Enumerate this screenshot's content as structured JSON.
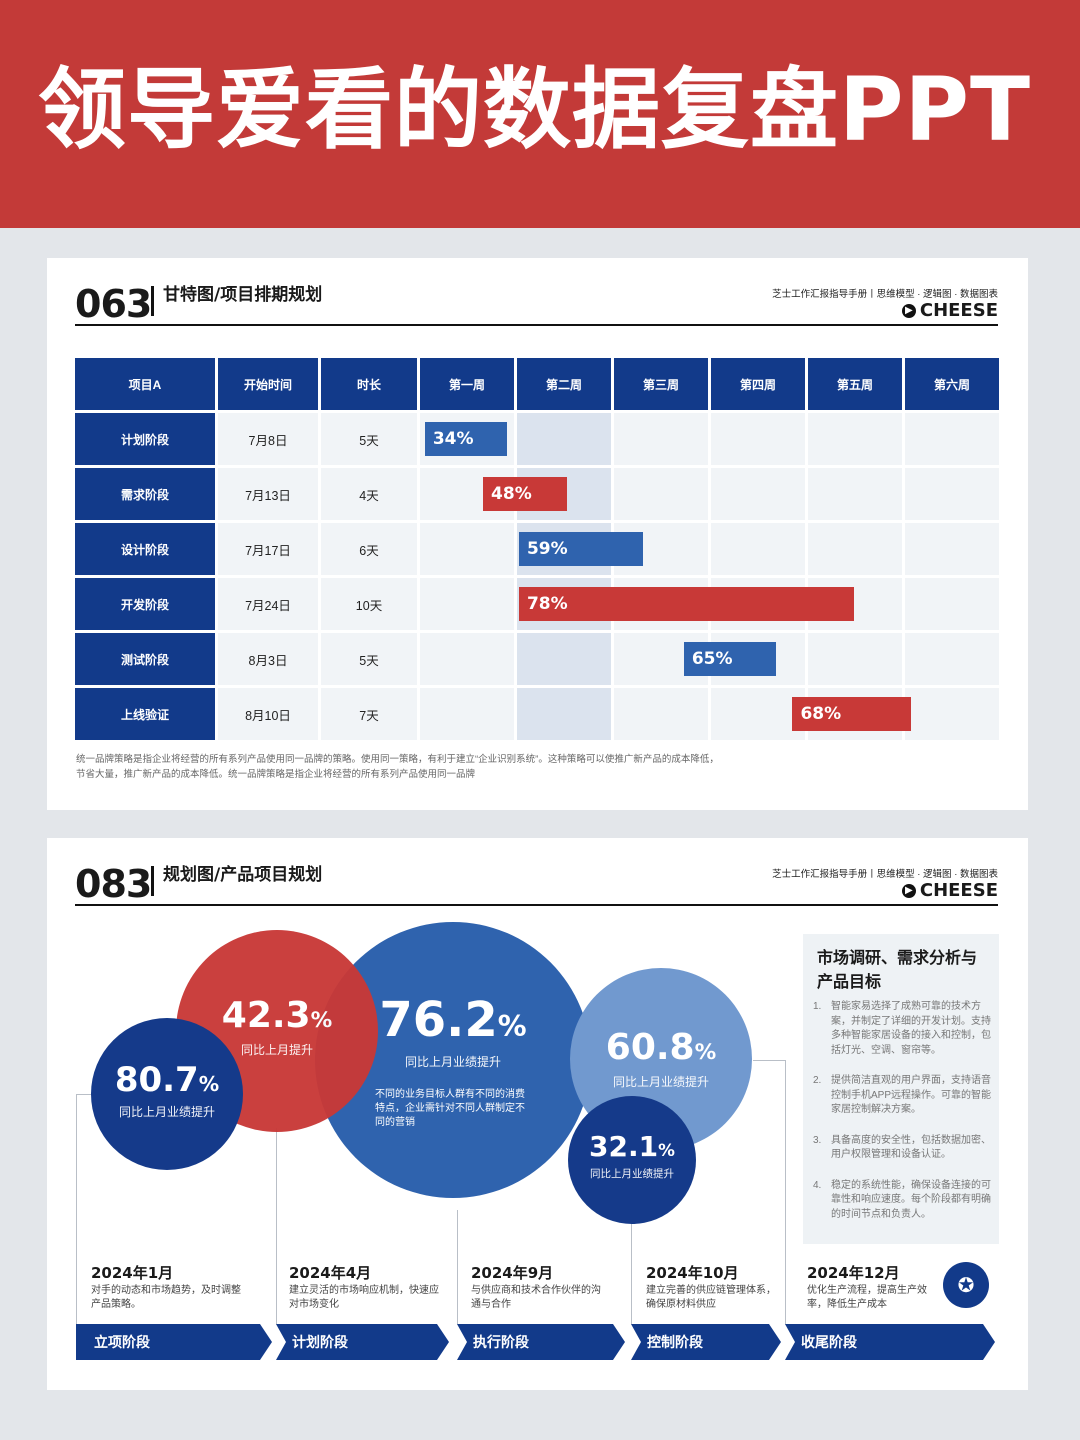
{
  "banner": {
    "title": "领导爱看的数据复盘PPT"
  },
  "header_sub": "芝士工作汇报指导手册丨思维模型 · 逻辑图 · 数据图表",
  "header_brand": "CHEESE",
  "section1": {
    "num": "063",
    "title": "甘特图/项目排期规划",
    "columns": [
      "项目A",
      "开始时间",
      "时长",
      "第一周",
      "第二周",
      "第三周",
      "第四周",
      "第五周",
      "第六周"
    ],
    "rows": [
      {
        "name": "计划阶段",
        "start": "7月8日",
        "duration": "5天",
        "pct": "34%",
        "color": "blue",
        "bar_start": 0.05,
        "bar_len": 0.85
      },
      {
        "name": "需求阶段",
        "start": "7月13日",
        "duration": "4天",
        "pct": "48%",
        "color": "red",
        "bar_start": 0.65,
        "bar_len": 0.87
      },
      {
        "name": "设计阶段",
        "start": "7月17日",
        "duration": "6天",
        "pct": "59%",
        "color": "blue",
        "bar_start": 1.02,
        "bar_len": 1.28
      },
      {
        "name": "开发阶段",
        "start": "7月24日",
        "duration": "10天",
        "pct": "78%",
        "color": "red",
        "bar_start": 1.02,
        "bar_len": 3.45
      },
      {
        "name": "测试阶段",
        "start": "8月3日",
        "duration": "5天",
        "pct": "65%",
        "color": "blue",
        "bar_start": 2.72,
        "bar_len": 0.95
      },
      {
        "name": "上线验证",
        "start": "8月10日",
        "duration": "7天",
        "pct": "68%",
        "color": "red",
        "bar_start": 3.84,
        "bar_len": 1.22
      }
    ],
    "note": "统一品牌策略是指企业将经营的所有系列产品使用同一品牌的策略。使用同一策略，有利于建立“企业识别系统”。这种策略可以使推广新产品的成本降低，节省大量，推广新产品的成本降低。统一品牌策略是指企业将经营的所有系列产品使用同一品牌"
  },
  "section2": {
    "num": "083",
    "title": "规划图/产品项目规划",
    "bubbles": [
      {
        "value": "80.7",
        "unit": "%",
        "label": "同比上月业绩提升",
        "color": "#153a8a"
      },
      {
        "value": "42.3",
        "unit": "%",
        "label": "同比上月提升",
        "color": "#c83937"
      },
      {
        "value": "76.2",
        "unit": "%",
        "label": "同比上月业绩提升",
        "desc": "不同的业务目标人群有不同的消费特点，企业需针对不同人群制定不同的营销",
        "color": "#2f63ae"
      },
      {
        "value": "60.8",
        "unit": "%",
        "label": "同比上月业绩提升",
        "color": "#7199cf"
      },
      {
        "value": "32.1",
        "unit": "%",
        "label": "同比上月业绩提升",
        "color": "#153a8a"
      }
    ],
    "timeline": [
      {
        "date": "2024年1月",
        "text": "对手的动态和市场趋势，及时调整产品策略。",
        "stage": "立项阶段"
      },
      {
        "date": "2024年4月",
        "text": "建立灵活的市场响应机制，快速应对市场变化",
        "stage": "计划阶段"
      },
      {
        "date": "2024年9月",
        "text": "与供应商和技术合作伙伴的沟通与合作",
        "stage": "执行阶段"
      },
      {
        "date": "2024年10月",
        "text": "建立完善的供应链管理体系，确保原材料供应",
        "stage": "控制阶段"
      },
      {
        "date": "2024年12月",
        "text": "优化生产流程，提高生产效率，降低生产成本",
        "stage": "收尾阶段"
      }
    ],
    "panel": {
      "title": "市场调研、需求分析与产品目标",
      "items": [
        {
          "n": "1.",
          "text": "智能家易选择了成熟可靠的技术方案，并制定了详细的开发计划。支持多种智能家居设备的接入和控制，包括灯光、空调、窗帘等。"
        },
        {
          "n": "2.",
          "text": "提供简洁直观的用户界面，支持语音控制手机APP远程操作。可靠的智能家居控制解决方案。"
        },
        {
          "n": "3.",
          "text": "具备高度的安全性，包括数据加密、用户权限管理和设备认证。"
        },
        {
          "n": "4.",
          "text": "稳定的系统性能，确保设备连接的可靠性和响应速度。每个阶段都有明确的时间节点和负责人。"
        }
      ]
    }
  }
}
